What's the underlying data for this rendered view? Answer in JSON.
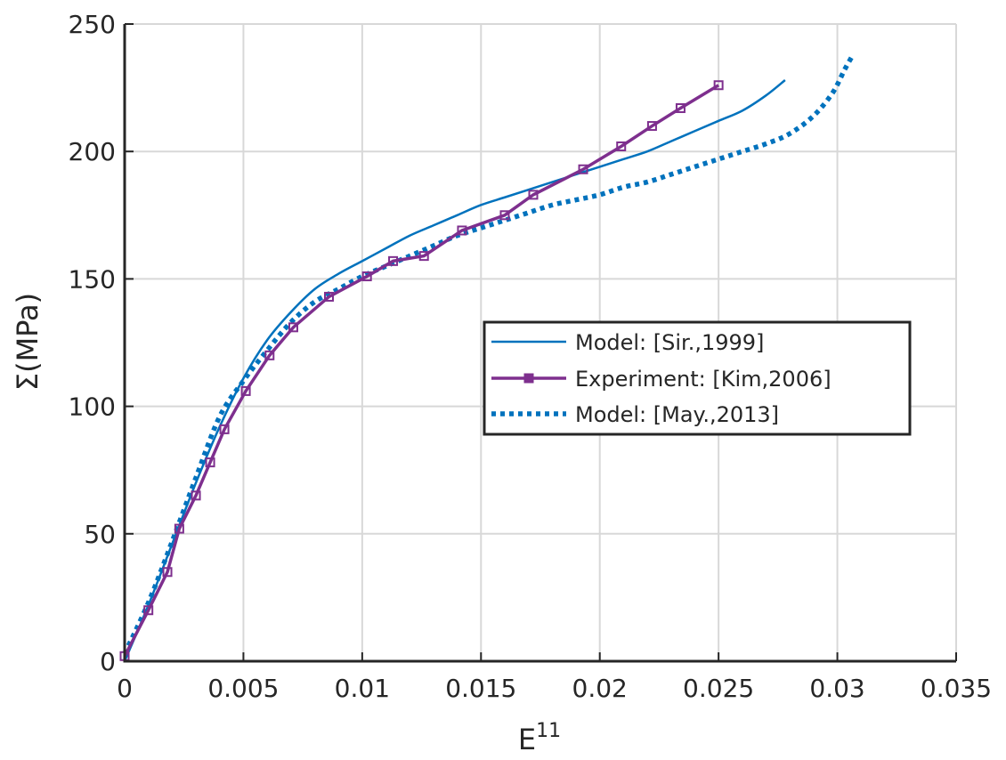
{
  "chart_data": {
    "type": "line",
    "title": "",
    "xlabel": "E",
    "xlabel_sup": "11",
    "ylabel": "Σ(MPa)",
    "xlim": [
      0,
      0.035
    ],
    "ylim": [
      0,
      250
    ],
    "xticks": [
      0,
      0.005,
      0.01,
      0.015,
      0.02,
      0.025,
      0.03,
      0.035
    ],
    "xtick_labels": [
      "0",
      "0.005",
      "0.01",
      "0.015",
      "0.02",
      "0.025",
      "0.03",
      "0.035"
    ],
    "yticks": [
      0,
      50,
      100,
      150,
      200,
      250
    ],
    "ytick_labels": [
      "0",
      "50",
      "100",
      "150",
      "200",
      "250"
    ],
    "grid": true,
    "legend_position": "center-right",
    "series": [
      {
        "name": "Model: [Sir.,1999]",
        "color": "#0072BD",
        "style": "solid",
        "x": [
          0,
          0.001,
          0.002,
          0.003,
          0.004,
          0.005,
          0.006,
          0.007,
          0.008,
          0.009,
          0.01,
          0.011,
          0.012,
          0.013,
          0.014,
          0.015,
          0.016,
          0.017,
          0.018,
          0.019,
          0.02,
          0.021,
          0.022,
          0.023,
          0.024,
          0.025,
          0.026,
          0.027,
          0.0278
        ],
        "y": [
          0,
          22,
          46,
          70,
          92,
          111,
          126,
          137,
          146,
          152,
          157,
          162,
          167,
          171,
          175,
          179,
          182,
          185,
          188,
          191,
          194,
          197,
          200,
          204,
          208,
          212,
          216,
          222,
          228
        ]
      },
      {
        "name": "Experiment: [Kim,2006]",
        "color": "#7E2F8E",
        "style": "solid-marker",
        "x": [
          0,
          0.001,
          0.0018,
          0.0023,
          0.003,
          0.0036,
          0.0042,
          0.0051,
          0.0061,
          0.0071,
          0.0086,
          0.0102,
          0.0113,
          0.0126,
          0.0142,
          0.016,
          0.0172,
          0.0193,
          0.0209,
          0.0222,
          0.0234,
          0.025
        ],
        "y": [
          2,
          20,
          35,
          52,
          65,
          78,
          91,
          106,
          120,
          131,
          143,
          151,
          157,
          159,
          169,
          175,
          183,
          193,
          202,
          210,
          217,
          226
        ]
      },
      {
        "name": "Model: [May.,2013]",
        "color": "#0072BD",
        "style": "dotted",
        "x": [
          0,
          0.001,
          0.002,
          0.003,
          0.004,
          0.005,
          0.006,
          0.007,
          0.008,
          0.009,
          0.01,
          0.011,
          0.012,
          0.013,
          0.014,
          0.015,
          0.016,
          0.017,
          0.018,
          0.019,
          0.02,
          0.021,
          0.022,
          0.023,
          0.024,
          0.025,
          0.026,
          0.027,
          0.028,
          0.029,
          0.0298,
          0.0303,
          0.0306
        ],
        "y": [
          3,
          23,
          47,
          72,
          96,
          110,
          122,
          133,
          141,
          146,
          151,
          155,
          159,
          163,
          167,
          170,
          173,
          176,
          179,
          181,
          183,
          186,
          188,
          191,
          194,
          197,
          200,
          203,
          207,
          214,
          223,
          232,
          237
        ]
      }
    ]
  }
}
